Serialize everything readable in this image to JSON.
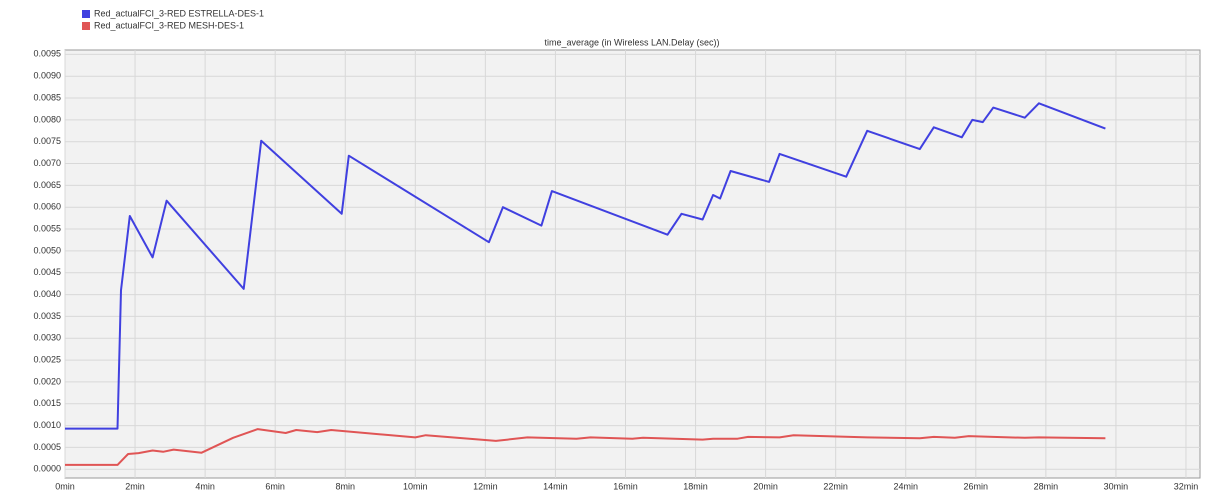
{
  "chart_data": {
    "type": "line",
    "title": "time_average (in Wireless LAN.Delay (sec))",
    "grid": true,
    "legend": "top-left",
    "xlim": [
      0,
      32.4
    ],
    "ylim": [
      -0.0002,
      0.0096
    ],
    "xticks": [
      {
        "value": 0,
        "label": "0min"
      },
      {
        "value": 2,
        "label": "2min"
      },
      {
        "value": 4,
        "label": "4min"
      },
      {
        "value": 6,
        "label": "6min"
      },
      {
        "value": 8,
        "label": "8min"
      },
      {
        "value": 10,
        "label": "10min"
      },
      {
        "value": 12,
        "label": "12min"
      },
      {
        "value": 14,
        "label": "14min"
      },
      {
        "value": 16,
        "label": "16min"
      },
      {
        "value": 18,
        "label": "18min"
      },
      {
        "value": 20,
        "label": "20min"
      },
      {
        "value": 22,
        "label": "22min"
      },
      {
        "value": 24,
        "label": "24min"
      },
      {
        "value": 26,
        "label": "26min"
      },
      {
        "value": 28,
        "label": "28min"
      },
      {
        "value": 30,
        "label": "30min"
      },
      {
        "value": 32,
        "label": "32min"
      }
    ],
    "yticks": [
      {
        "value": 0,
        "label": "0.0000"
      },
      {
        "value": 0.0005,
        "label": "0.0005"
      },
      {
        "value": 0.001,
        "label": "0.0010"
      },
      {
        "value": 0.0015,
        "label": "0.0015"
      },
      {
        "value": 0.002,
        "label": "0.0020"
      },
      {
        "value": 0.0025,
        "label": "0.0025"
      },
      {
        "value": 0.003,
        "label": "0.0030"
      },
      {
        "value": 0.0035,
        "label": "0.0035"
      },
      {
        "value": 0.004,
        "label": "0.0040"
      },
      {
        "value": 0.0045,
        "label": "0.0045"
      },
      {
        "value": 0.005,
        "label": "0.0050"
      },
      {
        "value": 0.0055,
        "label": "0.0055"
      },
      {
        "value": 0.006,
        "label": "0.0060"
      },
      {
        "value": 0.0065,
        "label": "0.0065"
      },
      {
        "value": 0.007,
        "label": "0.0070"
      },
      {
        "value": 0.0075,
        "label": "0.0075"
      },
      {
        "value": 0.008,
        "label": "0.0080"
      },
      {
        "value": 0.0085,
        "label": "0.0085"
      },
      {
        "value": 0.009,
        "label": "0.0090"
      },
      {
        "value": 0.0095,
        "label": "0.0095"
      }
    ],
    "series": [
      {
        "name": "Red_actualFCI_3-RED ESTRELLA-DES-1",
        "color": "#4040e0",
        "x": [
          0,
          1.5,
          1.6,
          1.85,
          2.5,
          2.9,
          5.1,
          5.6,
          7.9,
          8.1,
          12.1,
          12.5,
          13.6,
          13.9,
          17.2,
          17.6,
          18.2,
          18.5,
          18.7,
          19.0,
          20.1,
          20.4,
          22.3,
          22.9,
          24.4,
          24.8,
          25.6,
          25.9,
          26.2,
          26.5,
          27.4,
          27.8,
          29.7
        ],
        "values": [
          0.00093,
          0.00093,
          0.0041,
          0.0058,
          0.00485,
          0.00615,
          0.00413,
          0.00752,
          0.00585,
          0.00718,
          0.0052,
          0.006,
          0.00558,
          0.00637,
          0.00537,
          0.00585,
          0.00572,
          0.00628,
          0.0062,
          0.00683,
          0.00658,
          0.00722,
          0.0067,
          0.00775,
          0.00733,
          0.00783,
          0.0076,
          0.008,
          0.00795,
          0.00828,
          0.00805,
          0.00838,
          0.0078
        ]
      },
      {
        "name": "Red_actualFCI_3-RED MESH-DES-1",
        "color": "#e05555",
        "x": [
          0,
          1.5,
          1.8,
          2.1,
          2.5,
          2.8,
          3.1,
          3.9,
          4.8,
          5.5,
          6.3,
          6.6,
          7.2,
          7.6,
          10.0,
          10.3,
          12.3,
          13.2,
          14.6,
          15.0,
          16.2,
          16.5,
          18.2,
          18.5,
          19.2,
          19.5,
          20.4,
          20.8,
          22.9,
          24.4,
          24.8,
          25.4,
          25.8,
          27.4,
          27.8,
          29.7
        ],
        "values": [
          0.0001,
          0.0001,
          0.00035,
          0.00037,
          0.00043,
          0.0004,
          0.00045,
          0.00038,
          0.00072,
          0.00092,
          0.00083,
          0.0009,
          0.00085,
          0.0009,
          0.00073,
          0.00078,
          0.00065,
          0.00073,
          0.0007,
          0.00073,
          0.0007,
          0.00072,
          0.00068,
          0.0007,
          0.0007,
          0.00074,
          0.00073,
          0.00078,
          0.00073,
          0.00071,
          0.00074,
          0.00072,
          0.00076,
          0.00072,
          0.00073,
          0.00071
        ]
      }
    ]
  }
}
